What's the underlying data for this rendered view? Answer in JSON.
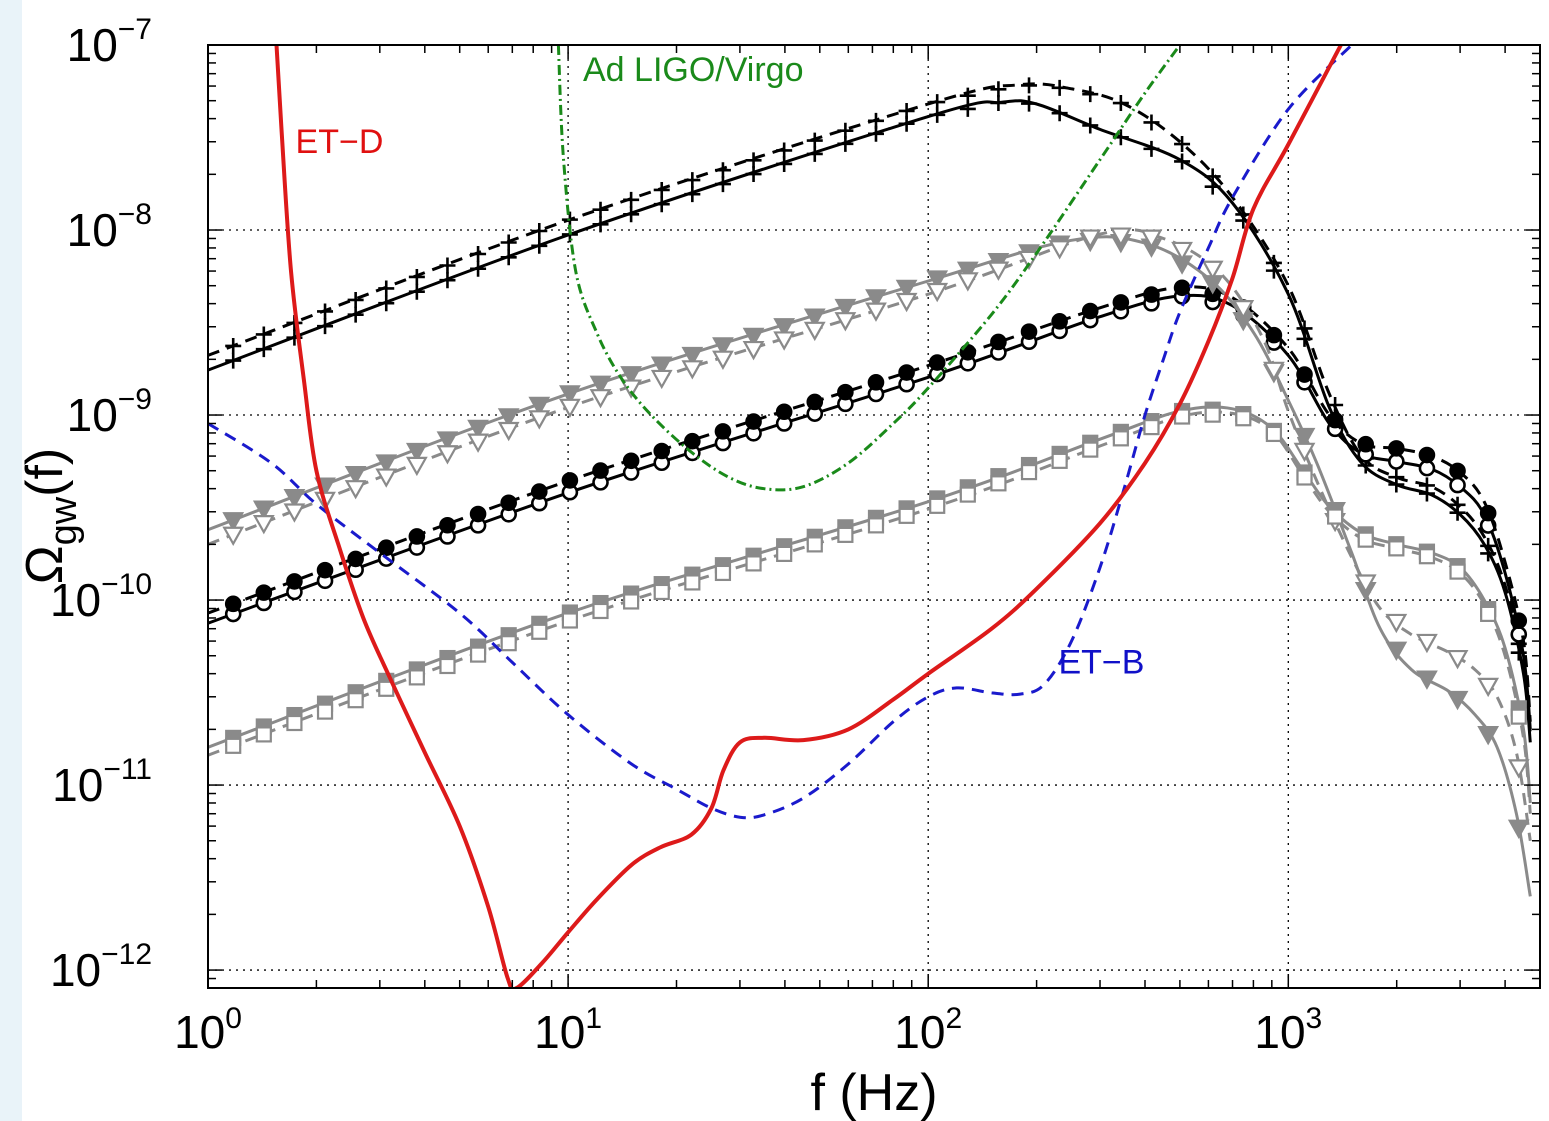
{
  "chart_data": {
    "type": "line",
    "xscale": "log",
    "yscale": "log",
    "xlim": [
      1,
      5000
    ],
    "ylim": [
      8e-13,
      1e-07
    ],
    "grid": true,
    "xlabel": "f (Hz)",
    "ylabel": {
      "main": "Ω",
      "sub": "gw",
      "suffix": "(f)"
    },
    "x_ticks": [
      {
        "base": "10",
        "exp": "0",
        "value": 1
      },
      {
        "base": "10",
        "exp": "1",
        "value": 10
      },
      {
        "base": "10",
        "exp": "2",
        "value": 100
      },
      {
        "base": "10",
        "exp": "3",
        "value": 1000
      }
    ],
    "y_ticks": [
      {
        "base": "10",
        "exp": "−7",
        "value": 1e-07
      },
      {
        "base": "10",
        "exp": "−8",
        "value": 1e-08
      },
      {
        "base": "10",
        "exp": "−9",
        "value": 1e-09
      },
      {
        "base": "10",
        "exp": "−10",
        "value": 1e-10
      },
      {
        "base": "10",
        "exp": "−11",
        "value": 1e-11
      },
      {
        "base": "10",
        "exp": "−12",
        "value": 1e-12
      }
    ],
    "annotations": [
      {
        "text": "ET−D",
        "color": "#e01010",
        "x": 1.75,
        "y": 2.6e-08
      },
      {
        "text": "Ad LIGO/Virgo",
        "color": "#1a8a1a",
        "x": 11,
        "y": 6.4e-08
      },
      {
        "text": "ET−B",
        "color": "#1010c8",
        "x": 230,
        "y": 4e-11
      }
    ],
    "series": [
      {
        "role": "sensitivity",
        "color": "#dd1a1a",
        "dash": "",
        "width": 4,
        "points": [
          [
            1.55,
            1e-07
          ],
          [
            1.6,
            3.5e-08
          ],
          [
            1.7,
            6e-09
          ],
          [
            1.85,
            1.5e-09
          ],
          [
            2.0,
            5e-10
          ],
          [
            2.3,
            2e-10
          ],
          [
            2.7,
            8e-11
          ],
          [
            3.2,
            3.8e-11
          ],
          [
            4.0,
            1.5e-11
          ],
          [
            5.0,
            6e-12
          ],
          [
            6.0,
            2.2e-12
          ],
          [
            6.8,
            9e-13
          ],
          [
            7.2,
            8e-13
          ],
          [
            8.5,
            1.1e-12
          ],
          [
            10,
            1.6e-12
          ],
          [
            12,
            2.4e-12
          ],
          [
            15,
            3.7e-12
          ],
          [
            18,
            4.6e-12
          ],
          [
            22,
            5.4e-12
          ],
          [
            25,
            7.5e-12
          ],
          [
            27,
            1.2e-11
          ],
          [
            30,
            1.7e-11
          ],
          [
            35,
            1.8e-11
          ],
          [
            45,
            1.75e-11
          ],
          [
            60,
            2e-11
          ],
          [
            80,
            2.9e-11
          ],
          [
            100,
            4e-11
          ],
          [
            150,
            7e-11
          ],
          [
            200,
            1.15e-10
          ],
          [
            300,
            2.6e-10
          ],
          [
            400,
            5.5e-10
          ],
          [
            500,
            1.15e-09
          ],
          [
            600,
            2.5e-09
          ],
          [
            700,
            5.5e-09
          ],
          [
            800,
            1.3e-08
          ],
          [
            1000,
            2.9e-08
          ],
          [
            1400,
            1e-07
          ]
        ]
      },
      {
        "role": "sensitivity",
        "color": "#1a1acc",
        "dash": "12,8",
        "width": 3,
        "points": [
          [
            1,
            9e-10
          ],
          [
            1.5,
            5.5e-10
          ],
          [
            2,
            3.3e-10
          ],
          [
            3,
            1.8e-10
          ],
          [
            5,
            8.5e-11
          ],
          [
            7,
            4.6e-11
          ],
          [
            10,
            2.4e-11
          ],
          [
            15,
            1.3e-11
          ],
          [
            20,
            9.5e-12
          ],
          [
            25,
            7.5e-12
          ],
          [
            30,
            6.7e-12
          ],
          [
            35,
            6.9e-12
          ],
          [
            45,
            8.5e-12
          ],
          [
            60,
            1.3e-11
          ],
          [
            80,
            2.2e-11
          ],
          [
            100,
            3e-11
          ],
          [
            120,
            3.35e-11
          ],
          [
            150,
            3.15e-11
          ],
          [
            180,
            3.1e-11
          ],
          [
            210,
            3.5e-11
          ],
          [
            250,
            6e-11
          ],
          [
            300,
            1.5e-10
          ],
          [
            350,
            4e-10
          ],
          [
            400,
            1e-09
          ],
          [
            450,
            2e-09
          ],
          [
            500,
            3.6e-09
          ],
          [
            600,
            8e-09
          ],
          [
            700,
            1.5e-08
          ],
          [
            1000,
            4.5e-08
          ],
          [
            1500,
            1e-07
          ]
        ]
      },
      {
        "role": "sensitivity",
        "color": "#1a8a1a",
        "dash": "10,4,2,4",
        "width": 3,
        "points": [
          [
            9.4,
            1e-07
          ],
          [
            9.7,
            2.5e-08
          ],
          [
            10.5,
            6e-09
          ],
          [
            12,
            2.8e-09
          ],
          [
            14,
            1.6e-09
          ],
          [
            17,
            1e-09
          ],
          [
            22,
            6.3e-10
          ],
          [
            28,
            4.6e-10
          ],
          [
            35,
            4e-10
          ],
          [
            45,
            4.1e-10
          ],
          [
            60,
            5.5e-10
          ],
          [
            80,
            9e-10
          ],
          [
            100,
            1.4e-09
          ],
          [
            150,
            3.5e-09
          ],
          [
            200,
            7.5e-09
          ],
          [
            300,
            2.4e-08
          ],
          [
            400,
            5.5e-08
          ],
          [
            500,
            1e-07
          ]
        ]
      },
      {
        "role": "model",
        "color": "#000000",
        "dash": "",
        "width": 3,
        "marker": "plus",
        "points": [
          [
            1,
            1.75e-09
          ],
          [
            10,
            9.4e-09
          ],
          [
            100,
            4.1e-08
          ],
          [
            160,
            4.9e-08
          ],
          [
            200,
            4.8e-08
          ],
          [
            300,
            3.5e-08
          ],
          [
            500,
            2.4e-08
          ],
          [
            700,
            1.4e-08
          ],
          [
            1000,
            4.5e-09
          ],
          [
            1300,
            1.1e-09
          ],
          [
            1600,
            5.5e-10
          ],
          [
            2000,
            4.2e-10
          ],
          [
            2500,
            3.7e-10
          ],
          [
            3000,
            2.9e-10
          ],
          [
            3500,
            2e-10
          ],
          [
            4000,
            1.1e-10
          ],
          [
            4500,
            4e-11
          ],
          [
            4700,
            1.7e-11
          ]
        ]
      },
      {
        "role": "model",
        "color": "#000000",
        "dash": "12,8",
        "width": 3,
        "marker": "plus",
        "points": [
          [
            1,
            2.1e-09
          ],
          [
            10,
            1.13e-08
          ],
          [
            100,
            4.8e-08
          ],
          [
            180,
            6.1e-08
          ],
          [
            250,
            5.8e-08
          ],
          [
            350,
            4.8e-08
          ],
          [
            500,
            3e-08
          ],
          [
            700,
            1.5e-08
          ],
          [
            1000,
            5e-09
          ],
          [
            1300,
            1.3e-09
          ],
          [
            1600,
            6e-10
          ],
          [
            2000,
            4.6e-10
          ],
          [
            2500,
            4.1e-10
          ],
          [
            3000,
            3.2e-10
          ],
          [
            3500,
            2.2e-10
          ],
          [
            4000,
            1.2e-10
          ],
          [
            4500,
            4.5e-11
          ],
          [
            4700,
            1.9e-11
          ]
        ]
      },
      {
        "role": "model",
        "color": "#000000",
        "dash": "",
        "width": 3,
        "marker": "circle-open",
        "points": [
          [
            1,
            7.5e-11
          ],
          [
            10,
            3.8e-10
          ],
          [
            100,
            1.6e-09
          ],
          [
            300,
            3.4e-09
          ],
          [
            500,
            4.4e-09
          ],
          [
            700,
            3.9e-09
          ],
          [
            1000,
            2.1e-09
          ],
          [
            1300,
            9e-10
          ],
          [
            1600,
            6.2e-10
          ],
          [
            2000,
            5.6e-10
          ],
          [
            2500,
            5.1e-10
          ],
          [
            3000,
            4.1e-10
          ],
          [
            3500,
            2.9e-10
          ],
          [
            4000,
            1.4e-10
          ],
          [
            4500,
            5e-11
          ],
          [
            4700,
            2e-11
          ]
        ]
      },
      {
        "role": "model",
        "color": "#000000",
        "dash": "12,8",
        "width": 3,
        "marker": "circle-filled",
        "points": [
          [
            1,
            8.5e-11
          ],
          [
            10,
            4.4e-10
          ],
          [
            100,
            1.85e-09
          ],
          [
            300,
            3.8e-09
          ],
          [
            500,
            4.9e-09
          ],
          [
            700,
            4.3e-09
          ],
          [
            1000,
            2.3e-09
          ],
          [
            1300,
            1e-09
          ],
          [
            1600,
            7e-10
          ],
          [
            2000,
            6.6e-10
          ],
          [
            2500,
            6e-10
          ],
          [
            3000,
            4.9e-10
          ],
          [
            3500,
            3.4e-10
          ],
          [
            4000,
            1.6e-10
          ],
          [
            4500,
            6e-11
          ],
          [
            4700,
            2.2e-11
          ]
        ]
      },
      {
        "role": "model",
        "color": "#8a8a8a",
        "dash": "",
        "width": 3,
        "marker": "triangle-filled",
        "points": [
          [
            1,
            2.4e-10
          ],
          [
            10,
            1.3e-09
          ],
          [
            100,
            5.3e-09
          ],
          [
            250,
            8.8e-09
          ],
          [
            400,
            8.5e-09
          ],
          [
            600,
            5.5e-09
          ],
          [
            800,
            2.8e-09
          ],
          [
            1000,
            1.2e-09
          ],
          [
            1200,
            5.5e-10
          ],
          [
            1500,
            1.8e-10
          ],
          [
            1800,
            7e-11
          ],
          [
            2200,
            4.2e-11
          ],
          [
            2800,
            3.2e-11
          ],
          [
            3300,
            2.4e-11
          ],
          [
            3800,
            1.6e-11
          ],
          [
            4300,
            7e-12
          ],
          [
            4700,
            2.5e-12
          ]
        ]
      },
      {
        "role": "model",
        "color": "#8a8a8a",
        "dash": "12,8",
        "width": 3,
        "marker": "triangle-open",
        "points": [
          [
            1,
            2e-10
          ],
          [
            10,
            1.1e-09
          ],
          [
            100,
            4.5e-09
          ],
          [
            300,
            9.5e-09
          ],
          [
            450,
            9e-09
          ],
          [
            650,
            5.8e-09
          ],
          [
            850,
            2.6e-09
          ],
          [
            1000,
            1.05e-09
          ],
          [
            1200,
            4.4e-10
          ],
          [
            1500,
            1.7e-10
          ],
          [
            1800,
            9e-11
          ],
          [
            2200,
            6.5e-11
          ],
          [
            2800,
            5.2e-11
          ],
          [
            3300,
            4.2e-11
          ],
          [
            3800,
            3e-11
          ],
          [
            4300,
            1.5e-11
          ],
          [
            4700,
            5e-12
          ]
        ]
      },
      {
        "role": "model",
        "color": "#8a8a8a",
        "dash": "",
        "width": 3,
        "marker": "square-filled",
        "points": [
          [
            1,
            1.6e-11
          ],
          [
            10,
            8.5e-11
          ],
          [
            100,
            3.4e-10
          ],
          [
            300,
            7.4e-10
          ],
          [
            500,
            1.05e-09
          ],
          [
            700,
            1.08e-09
          ],
          [
            900,
            8.5e-10
          ],
          [
            1100,
            5e-10
          ],
          [
            1300,
            3.2e-10
          ],
          [
            1600,
            2.3e-10
          ],
          [
            2000,
            2e-10
          ],
          [
            2500,
            1.8e-10
          ],
          [
            3000,
            1.5e-10
          ],
          [
            3500,
            1e-10
          ],
          [
            4000,
            5.5e-11
          ],
          [
            4500,
            2e-11
          ],
          [
            4700,
            8e-12
          ]
        ]
      },
      {
        "role": "model",
        "color": "#8a8a8a",
        "dash": "12,8",
        "width": 3,
        "marker": "square-open",
        "points": [
          [
            1,
            1.45e-11
          ],
          [
            10,
            7.7e-11
          ],
          [
            100,
            3.1e-10
          ],
          [
            300,
            6.8e-10
          ],
          [
            500,
            9.8e-10
          ],
          [
            700,
            1.02e-09
          ],
          [
            900,
            8.2e-10
          ],
          [
            1100,
            4.7e-10
          ],
          [
            1300,
            3e-10
          ],
          [
            1600,
            2.15e-10
          ],
          [
            2000,
            1.9e-10
          ],
          [
            2500,
            1.7e-10
          ],
          [
            3000,
            1.4e-10
          ],
          [
            3500,
            9.5e-11
          ],
          [
            4000,
            5e-11
          ],
          [
            4500,
            1.8e-11
          ],
          [
            4700,
            7e-12
          ]
        ]
      }
    ]
  }
}
